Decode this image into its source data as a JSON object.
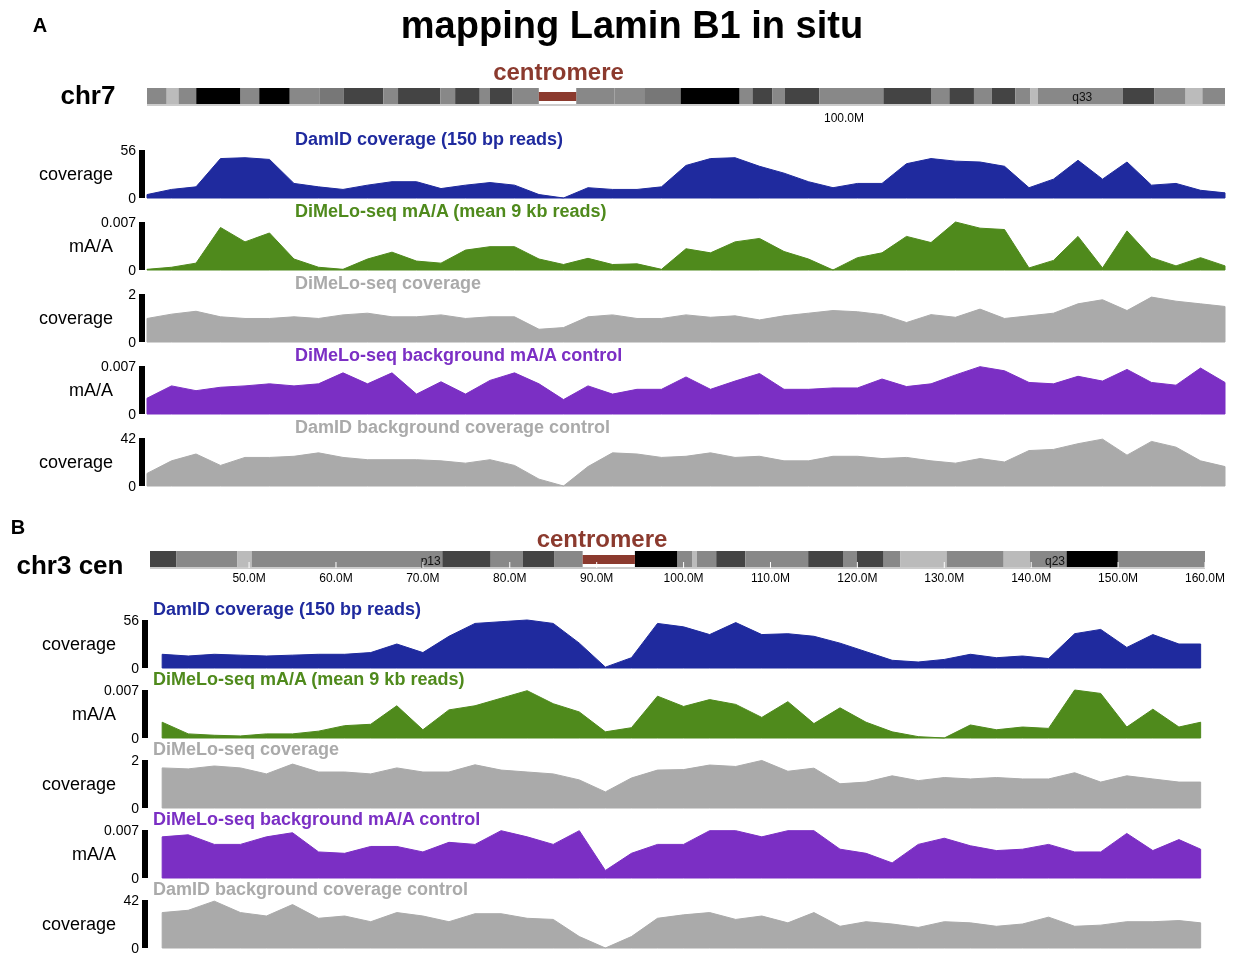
{
  "chart_data": [
    {
      "type": "area",
      "title": "mapping Lamin B1 in situ",
      "annotations": [
        "A",
        "chr7",
        "centromere",
        "q33",
        "100.0M"
      ],
      "ylabel": "coverage",
      "ylim": [
        0,
        56
      ],
      "yticks": [
        0,
        56
      ],
      "categories": [
        null,
        null,
        null,
        null,
        null,
        null,
        null,
        null,
        null,
        null,
        null,
        null,
        null,
        null,
        null,
        null,
        null,
        null,
        null,
        null,
        null,
        null,
        null,
        null,
        null,
        null,
        null,
        null,
        null,
        null,
        null,
        null,
        null,
        null,
        null,
        null,
        null,
        null,
        null,
        null,
        null,
        null,
        null,
        null,
        null
      ],
      "series": [
        {
          "name": "DamID coverage (150 bp reads)",
          "color": "#1f2a9e",
          "values": [
            4,
            10,
            13,
            46,
            47,
            45,
            17,
            13,
            10,
            15,
            19,
            19,
            11,
            15,
            18,
            15,
            4,
            0,
            12,
            10,
            10,
            13,
            38,
            46,
            47,
            37,
            29,
            19,
            12,
            17,
            17,
            40,
            46,
            43,
            42,
            37,
            12,
            22,
            44,
            22,
            42,
            15,
            17,
            9,
            6
          ]
        }
      ]
    },
    {
      "type": "area",
      "ylabel": "mA/A",
      "ylim": [
        0,
        0.007
      ],
      "yticks": [
        0,
        0.007
      ],
      "categories": [
        null,
        null,
        null,
        null,
        null,
        null,
        null,
        null,
        null,
        null,
        null,
        null,
        null,
        null,
        null,
        null,
        null,
        null,
        null,
        null,
        null,
        null,
        null,
        null,
        null,
        null,
        null,
        null,
        null,
        null,
        null,
        null,
        null,
        null,
        null,
        null,
        null,
        null,
        null,
        null,
        null,
        null,
        null,
        null,
        null
      ],
      "series": [
        {
          "name": "DiMeLo-seq mA/A (mean 9 kb reads)",
          "color": "#4f8a1c",
          "values": [
            0.0001,
            0.0004,
            0.001,
            0.0062,
            0.0041,
            0.0054,
            0.0016,
            0.0004,
            0.0001,
            0.0016,
            0.0026,
            0.0013,
            0.001,
            0.0029,
            0.0034,
            0.0034,
            0.0016,
            0.0008,
            0.0017,
            0.0008,
            0.0009,
            0.0001,
            0.0031,
            0.0025,
            0.0041,
            0.0046,
            0.0027,
            0.0016,
            0,
            0.0018,
            0.0025,
            0.0049,
            0.004,
            0.007,
            0.0061,
            0.0059,
            0.0003,
            0.0014,
            0.0049,
            0.0003,
            0.0057,
            0.0018,
            0.0006,
            0.0018,
            0.0006
          ]
        }
      ]
    },
    {
      "type": "area",
      "ylabel": "coverage",
      "ylim": [
        0,
        2
      ],
      "yticks": [
        0,
        2
      ],
      "categories": [
        null,
        null,
        null,
        null,
        null,
        null,
        null,
        null,
        null,
        null,
        null,
        null,
        null,
        null,
        null,
        null,
        null,
        null,
        null,
        null,
        null,
        null,
        null,
        null,
        null,
        null,
        null,
        null,
        null,
        null,
        null,
        null,
        null,
        null,
        null,
        null,
        null,
        null,
        null,
        null,
        null,
        null,
        null,
        null,
        null
      ],
      "series": [
        {
          "name": "DiMeLo-seq coverage",
          "color": "#aaaaaa",
          "values": [
            0.98,
            1.16,
            1.28,
            1.05,
            0.98,
            0.98,
            1.05,
            0.98,
            1.13,
            1.2,
            1.05,
            1.05,
            1.13,
            0.98,
            1.05,
            1.05,
            0.53,
            0.6,
            1.05,
            1.13,
            0.98,
            0.98,
            1.13,
            1.03,
            1.09,
            0.92,
            1.09,
            1.2,
            1.31,
            1.26,
            1.14,
            0.81,
            1.14,
            1.03,
            1.37,
            0.98,
            1.09,
            1.2,
            1.59,
            1.76,
            1.31,
            1.87,
            1.7,
            1.59,
            1.48
          ]
        }
      ]
    },
    {
      "type": "area",
      "ylabel": "mA/A",
      "ylim": [
        0,
        0.007
      ],
      "yticks": [
        0,
        0.007
      ],
      "categories": [
        null,
        null,
        null,
        null,
        null,
        null,
        null,
        null,
        null,
        null,
        null,
        null,
        null,
        null,
        null,
        null,
        null,
        null,
        null,
        null,
        null,
        null,
        null,
        null,
        null,
        null,
        null,
        null,
        null,
        null,
        null,
        null,
        null,
        null,
        null,
        null,
        null,
        null,
        null,
        null,
        null,
        null,
        null,
        null,
        null
      ],
      "series": [
        {
          "name": "DiMeLo-seq background mA/A control",
          "color": "#7b2fc4",
          "values": [
            0.0023,
            0.0041,
            0.0034,
            0.0039,
            0.0041,
            0.0044,
            0.0041,
            0.0044,
            0.006,
            0.0044,
            0.006,
            0.0029,
            0.0047,
            0.0029,
            0.0049,
            0.006,
            0.0044,
            0.0021,
            0.0041,
            0.0029,
            0.0036,
            0.0036,
            0.0054,
            0.0036,
            0.0048,
            0.0059,
            0.0036,
            0.0036,
            0.0038,
            0.0038,
            0.0051,
            0.004,
            0.0044,
            0.0057,
            0.0069,
            0.0063,
            0.0046,
            0.0044,
            0.0055,
            0.0048,
            0.0065,
            0.0046,
            0.0042,
            0.0067,
            0.0046
          ]
        }
      ]
    },
    {
      "type": "area",
      "ylabel": "coverage",
      "ylim": [
        0,
        42
      ],
      "yticks": [
        0,
        42
      ],
      "categories": [
        null,
        null,
        null,
        null,
        null,
        null,
        null,
        null,
        null,
        null,
        null,
        null,
        null,
        null,
        null,
        null,
        null,
        null,
        null,
        null,
        null,
        null,
        null,
        null,
        null,
        null,
        null,
        null,
        null,
        null,
        null,
        null,
        null,
        null,
        null,
        null,
        null,
        null,
        null,
        null,
        null,
        null,
        null,
        null,
        null
      ],
      "series": [
        {
          "name": "DamID background coverage control",
          "color": "#aaaaaa",
          "values": [
            11,
            22,
            28,
            18,
            25,
            25,
            26,
            29,
            25,
            23,
            23,
            23,
            22,
            20,
            23,
            18,
            6,
            0,
            17,
            29,
            28,
            25,
            26,
            29,
            25,
            26,
            22,
            22,
            26,
            26,
            24,
            25,
            22,
            20,
            24,
            21,
            31,
            32,
            37,
            41,
            27,
            39,
            34,
            22,
            17
          ]
        }
      ]
    },
    {
      "type": "area",
      "annotations": [
        "B",
        "chr3 cen",
        "centromere",
        "p13",
        "q23"
      ],
      "ylabel": "coverage",
      "ylim": [
        0,
        56
      ],
      "yticks": [
        0,
        56
      ],
      "xlim": [
        38.6,
        160
      ],
      "xticks": [
        {
          "value": 50,
          "label": "50.0M"
        },
        {
          "value": 60,
          "label": "60.0M"
        },
        {
          "value": 70,
          "label": "70.0M"
        },
        {
          "value": 80,
          "label": "80.0M"
        },
        {
          "value": 90,
          "label": "90.0M"
        },
        {
          "value": 100,
          "label": "100.0M"
        },
        {
          "value": 110,
          "label": "110.0M"
        },
        {
          "value": 120,
          "label": "120.0M"
        },
        {
          "value": 130,
          "label": "130.0M"
        },
        {
          "value": 140,
          "label": "140.0M"
        },
        {
          "value": 150,
          "label": "150.0M"
        },
        {
          "value": 160,
          "label": "160.0M"
        }
      ],
      "x": [
        40,
        43,
        46,
        49,
        52,
        55,
        58,
        61,
        64,
        67,
        70,
        73,
        76,
        79,
        82,
        85,
        88,
        91,
        94,
        97,
        100,
        103,
        106,
        109,
        112,
        115,
        118,
        121,
        124,
        127,
        130,
        133,
        136,
        139,
        142,
        145,
        148,
        151,
        154,
        157,
        159.5
      ],
      "series": [
        {
          "name": "DamID coverage (150 bp reads)",
          "color": "#1f2a9e",
          "values": [
            16,
            14,
            16,
            15,
            14,
            15,
            16,
            16,
            18,
            28,
            18,
            37,
            52,
            54,
            56,
            52,
            29,
            1,
            12,
            52,
            48,
            39,
            53,
            39,
            40,
            37,
            29,
            19,
            9,
            7,
            10,
            16,
            12,
            14,
            11,
            40,
            45,
            24,
            39,
            28,
            28
          ]
        }
      ]
    },
    {
      "type": "area",
      "ylabel": "mA/A",
      "ylim": [
        0,
        0.007
      ],
      "yticks": [
        0,
        0.007
      ],
      "xlim": [
        38.6,
        160
      ],
      "tick_labels": "y",
      "x": [
        40,
        43,
        46,
        49,
        52,
        55,
        58,
        61,
        64,
        67,
        70,
        73,
        76,
        79,
        82,
        85,
        88,
        91,
        94,
        97,
        100,
        103,
        106,
        109,
        112,
        115,
        118,
        121,
        124,
        127,
        130,
        133,
        136,
        139,
        142,
        145,
        148,
        151,
        154,
        157,
        159.5
      ],
      "series": [
        {
          "name": "DiMeLo-seq mA/A (mean 9 kb reads)",
          "color": "#4f8a1c",
          "values": [
            0.0023,
            0.0006,
            0.0004,
            0.0003,
            0.0006,
            0.0006,
            0.001,
            0.0018,
            0.002,
            0.0047,
            0.0012,
            0.0041,
            0.0047,
            0.0058,
            0.0069,
            0.005,
            0.0038,
            0.0009,
            0.0015,
            0.0061,
            0.0046,
            0.0056,
            0.0049,
            0.003,
            0.0053,
            0.0021,
            0.0044,
            0.0023,
            0.0009,
            0.0002,
            0,
            0.0019,
            0.0012,
            0.0016,
            0.0014,
            0.007,
            0.0065,
            0.0016,
            0.0042,
            0.0016,
            0.0023
          ]
        }
      ]
    },
    {
      "type": "area",
      "ylabel": "coverage",
      "ylim": [
        0,
        2
      ],
      "yticks": [
        0,
        2
      ],
      "xlim": [
        38.6,
        160
      ],
      "tick_labels": "y",
      "x": [
        40,
        43,
        46,
        49,
        52,
        55,
        58,
        61,
        64,
        67,
        70,
        73,
        76,
        79,
        82,
        85,
        88,
        91,
        94,
        97,
        100,
        103,
        106,
        109,
        112,
        115,
        118,
        121,
        124,
        127,
        130,
        133,
        136,
        139,
        142,
        145,
        148,
        151,
        154,
        157,
        159.5
      ],
      "series": [
        {
          "name": "DiMeLo-seq coverage",
          "color": "#aaaaaa",
          "values": [
            1.67,
            1.63,
            1.75,
            1.67,
            1.42,
            1.83,
            1.5,
            1.5,
            1.42,
            1.67,
            1.5,
            1.5,
            1.8,
            1.58,
            1.5,
            1.42,
            1.17,
            0.67,
            1.25,
            1.58,
            1.6,
            1.79,
            1.73,
            1.98,
            1.53,
            1.66,
            1.01,
            1.08,
            1.34,
            1.14,
            1.27,
            1.21,
            1.27,
            1.21,
            1.21,
            1.47,
            1.08,
            1.34,
            1.21,
            1.08,
            1.08
          ]
        }
      ]
    },
    {
      "type": "area",
      "ylabel": "mA/A",
      "ylim": [
        0,
        0.007
      ],
      "yticks": [
        0,
        0.007
      ],
      "xlim": [
        38.6,
        160
      ],
      "tick_labels": "y",
      "x": [
        40,
        43,
        46,
        49,
        52,
        55,
        58,
        61,
        64,
        67,
        70,
        73,
        76,
        79,
        82,
        85,
        88,
        91,
        94,
        97,
        100,
        103,
        106,
        109,
        112,
        115,
        118,
        121,
        124,
        127,
        130,
        133,
        136,
        139,
        142,
        145,
        148,
        151,
        154,
        157,
        159.5
      ],
      "series": [
        {
          "name": "DiMeLo-seq background mA/A control",
          "color": "#7b2fc4",
          "values": [
            0.006,
            0.0063,
            0.0049,
            0.0049,
            0.006,
            0.0066,
            0.0038,
            0.0036,
            0.0046,
            0.0046,
            0.0038,
            0.0052,
            0.0049,
            0.0069,
            0.006,
            0.0049,
            0.0069,
            0.0011,
            0.0036,
            0.0049,
            0.0049,
            0.0069,
            0.0069,
            0.006,
            0.0069,
            0.0069,
            0.0042,
            0.0036,
            0.0022,
            0.0049,
            0.0058,
            0.0047,
            0.004,
            0.0042,
            0.0049,
            0.0038,
            0.0038,
            0.0065,
            0.004,
            0.0056,
            0.0042
          ]
        }
      ]
    },
    {
      "type": "area",
      "ylabel": "coverage",
      "ylim": [
        0,
        42
      ],
      "yticks": [
        0,
        42
      ],
      "xlim": [
        38.6,
        160
      ],
      "tick_labels": "y",
      "x": [
        40,
        43,
        46,
        49,
        52,
        55,
        58,
        61,
        64,
        67,
        70,
        73,
        76,
        79,
        82,
        85,
        88,
        91,
        94,
        97,
        100,
        103,
        106,
        109,
        112,
        115,
        118,
        121,
        124,
        127,
        130,
        133,
        136,
        139,
        142,
        145,
        148,
        151,
        154,
        157,
        159.5
      ],
      "series": [
        {
          "name": "DamID background coverage control",
          "color": "#aaaaaa",
          "values": [
            31,
            33,
            41,
            31,
            28,
            38,
            26,
            28,
            23,
            31,
            28,
            23,
            30,
            30,
            26,
            25,
            10,
            0,
            10,
            26,
            29,
            31,
            25,
            28,
            22,
            31,
            19,
            23,
            21,
            18,
            23,
            22,
            19,
            21,
            27,
            19,
            20,
            23,
            23,
            24,
            22
          ]
        }
      ]
    }
  ]
}
